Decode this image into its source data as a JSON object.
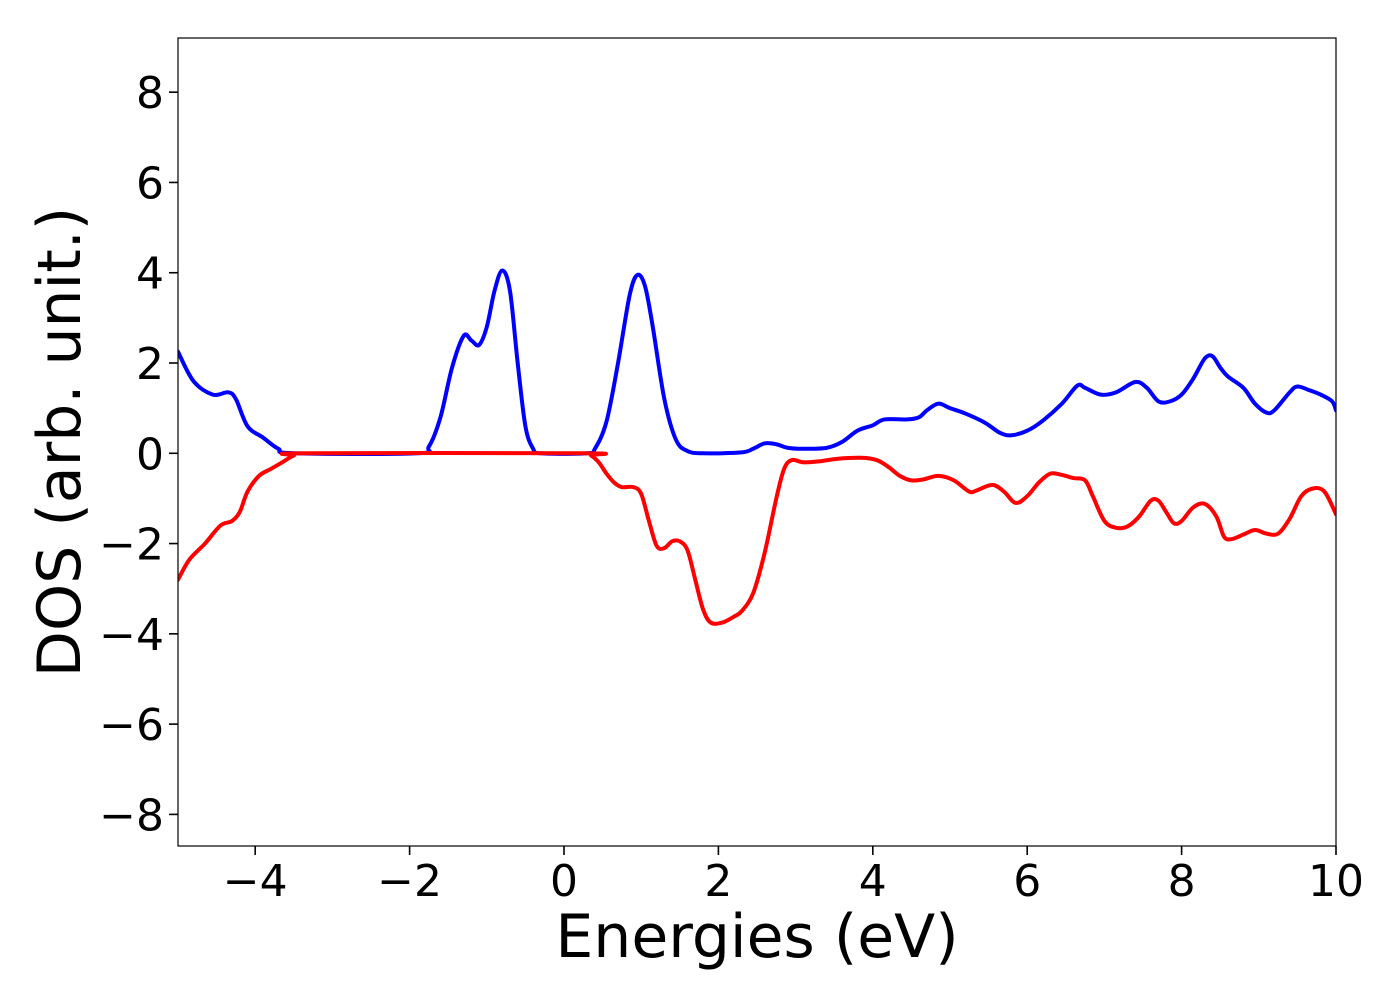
{
  "chart_data": {
    "type": "line",
    "title": "",
    "xlabel": "Energies (eV)",
    "ylabel": "DOS (arb. unit.)",
    "xlim": [
      -5,
      10
    ],
    "ylim": [
      -8.7,
      9.2
    ],
    "grid": false,
    "legend": "none",
    "x_ticks": [
      -4,
      -2,
      0,
      2,
      4,
      6,
      8,
      10
    ],
    "x_tick_labels": [
      "−4",
      "−2",
      "0",
      "2",
      "4",
      "6",
      "8",
      "10"
    ],
    "y_ticks": [
      8,
      6,
      4,
      2,
      0,
      -2,
      -4,
      -6,
      -8
    ],
    "y_tick_labels": [
      "8",
      "6",
      "4",
      "2",
      "0",
      "−2",
      "−4",
      "−6",
      "−8"
    ],
    "series": [
      {
        "color": "#0000ff",
        "points": [
          [
            -5.0,
            2.25
          ],
          [
            -4.8,
            1.6
          ],
          [
            -4.55,
            1.3
          ],
          [
            -4.35,
            1.35
          ],
          [
            -4.25,
            1.2
          ],
          [
            -4.1,
            0.6
          ],
          [
            -3.9,
            0.35
          ],
          [
            -3.7,
            0.1
          ],
          [
            -3.5,
            0.0
          ],
          [
            -1.9,
            0.0
          ],
          [
            -1.75,
            0.15
          ],
          [
            -1.6,
            0.8
          ],
          [
            -1.45,
            1.9
          ],
          [
            -1.3,
            2.6
          ],
          [
            -1.2,
            2.5
          ],
          [
            -1.1,
            2.4
          ],
          [
            -1.0,
            2.8
          ],
          [
            -0.9,
            3.6
          ],
          [
            -0.8,
            4.05
          ],
          [
            -0.7,
            3.6
          ],
          [
            -0.6,
            2.0
          ],
          [
            -0.5,
            0.6
          ],
          [
            -0.4,
            0.1
          ],
          [
            -0.3,
            0.0
          ],
          [
            0.3,
            0.0
          ],
          [
            0.4,
            0.1
          ],
          [
            0.55,
            0.7
          ],
          [
            0.7,
            2.0
          ],
          [
            0.85,
            3.5
          ],
          [
            0.95,
            3.95
          ],
          [
            1.05,
            3.7
          ],
          [
            1.15,
            2.8
          ],
          [
            1.3,
            1.2
          ],
          [
            1.45,
            0.3
          ],
          [
            1.6,
            0.05
          ],
          [
            1.8,
            0.0
          ],
          [
            2.3,
            0.02
          ],
          [
            2.45,
            0.1
          ],
          [
            2.6,
            0.22
          ],
          [
            2.75,
            0.2
          ],
          [
            2.9,
            0.12
          ],
          [
            3.1,
            0.1
          ],
          [
            3.4,
            0.12
          ],
          [
            3.6,
            0.25
          ],
          [
            3.8,
            0.5
          ],
          [
            4.0,
            0.62
          ],
          [
            4.15,
            0.75
          ],
          [
            4.45,
            0.75
          ],
          [
            4.6,
            0.8
          ],
          [
            4.7,
            0.95
          ],
          [
            4.85,
            1.1
          ],
          [
            5.0,
            1.0
          ],
          [
            5.2,
            0.88
          ],
          [
            5.45,
            0.68
          ],
          [
            5.65,
            0.45
          ],
          [
            5.8,
            0.4
          ],
          [
            6.0,
            0.5
          ],
          [
            6.2,
            0.72
          ],
          [
            6.45,
            1.1
          ],
          [
            6.65,
            1.5
          ],
          [
            6.75,
            1.45
          ],
          [
            6.95,
            1.3
          ],
          [
            7.15,
            1.35
          ],
          [
            7.4,
            1.58
          ],
          [
            7.55,
            1.45
          ],
          [
            7.7,
            1.15
          ],
          [
            7.85,
            1.15
          ],
          [
            8.0,
            1.3
          ],
          [
            8.15,
            1.65
          ],
          [
            8.3,
            2.1
          ],
          [
            8.4,
            2.15
          ],
          [
            8.5,
            1.9
          ],
          [
            8.6,
            1.7
          ],
          [
            8.8,
            1.45
          ],
          [
            8.95,
            1.1
          ],
          [
            9.1,
            0.9
          ],
          [
            9.2,
            0.95
          ],
          [
            9.4,
            1.35
          ],
          [
            9.5,
            1.48
          ],
          [
            9.65,
            1.4
          ],
          [
            9.8,
            1.3
          ],
          [
            9.95,
            1.15
          ],
          [
            10.0,
            0.95
          ]
        ]
      },
      {
        "color": "#ff0000",
        "points": [
          [
            -5.0,
            -2.8
          ],
          [
            -4.85,
            -2.35
          ],
          [
            -4.65,
            -2.0
          ],
          [
            -4.45,
            -1.6
          ],
          [
            -4.3,
            -1.5
          ],
          [
            -4.2,
            -1.3
          ],
          [
            -4.1,
            -0.85
          ],
          [
            -3.95,
            -0.5
          ],
          [
            -3.8,
            -0.35
          ],
          [
            -3.65,
            -0.2
          ],
          [
            -3.5,
            -0.05
          ],
          [
            -3.35,
            0.0
          ],
          [
            0.25,
            0.0
          ],
          [
            0.35,
            -0.05
          ],
          [
            0.45,
            -0.2
          ],
          [
            0.55,
            -0.45
          ],
          [
            0.65,
            -0.65
          ],
          [
            0.75,
            -0.75
          ],
          [
            0.9,
            -0.75
          ],
          [
            1.0,
            -0.9
          ],
          [
            1.1,
            -1.5
          ],
          [
            1.2,
            -2.05
          ],
          [
            1.3,
            -2.1
          ],
          [
            1.4,
            -1.95
          ],
          [
            1.5,
            -1.95
          ],
          [
            1.6,
            -2.15
          ],
          [
            1.7,
            -2.8
          ],
          [
            1.8,
            -3.45
          ],
          [
            1.9,
            -3.75
          ],
          [
            2.05,
            -3.75
          ],
          [
            2.2,
            -3.62
          ],
          [
            2.3,
            -3.5
          ],
          [
            2.45,
            -3.1
          ],
          [
            2.6,
            -2.2
          ],
          [
            2.75,
            -1.0
          ],
          [
            2.85,
            -0.35
          ],
          [
            2.95,
            -0.15
          ],
          [
            3.1,
            -0.2
          ],
          [
            3.3,
            -0.18
          ],
          [
            3.55,
            -0.12
          ],
          [
            3.85,
            -0.1
          ],
          [
            4.05,
            -0.15
          ],
          [
            4.2,
            -0.3
          ],
          [
            4.35,
            -0.5
          ],
          [
            4.5,
            -0.6
          ],
          [
            4.65,
            -0.58
          ],
          [
            4.85,
            -0.5
          ],
          [
            5.05,
            -0.6
          ],
          [
            5.25,
            -0.85
          ],
          [
            5.35,
            -0.82
          ],
          [
            5.55,
            -0.7
          ],
          [
            5.7,
            -0.85
          ],
          [
            5.85,
            -1.1
          ],
          [
            6.0,
            -0.95
          ],
          [
            6.15,
            -0.65
          ],
          [
            6.3,
            -0.45
          ],
          [
            6.45,
            -0.48
          ],
          [
            6.6,
            -0.55
          ],
          [
            6.75,
            -0.6
          ],
          [
            6.85,
            -0.95
          ],
          [
            7.0,
            -1.5
          ],
          [
            7.15,
            -1.65
          ],
          [
            7.3,
            -1.62
          ],
          [
            7.45,
            -1.4
          ],
          [
            7.6,
            -1.05
          ],
          [
            7.7,
            -1.05
          ],
          [
            7.8,
            -1.3
          ],
          [
            7.9,
            -1.55
          ],
          [
            8.0,
            -1.5
          ],
          [
            8.15,
            -1.2
          ],
          [
            8.3,
            -1.12
          ],
          [
            8.45,
            -1.4
          ],
          [
            8.55,
            -1.85
          ],
          [
            8.65,
            -1.9
          ],
          [
            8.8,
            -1.8
          ],
          [
            8.95,
            -1.7
          ],
          [
            9.1,
            -1.78
          ],
          [
            9.25,
            -1.78
          ],
          [
            9.4,
            -1.45
          ],
          [
            9.55,
            -0.95
          ],
          [
            9.7,
            -0.78
          ],
          [
            9.85,
            -0.85
          ],
          [
            10.0,
            -1.35
          ]
        ]
      }
    ]
  }
}
